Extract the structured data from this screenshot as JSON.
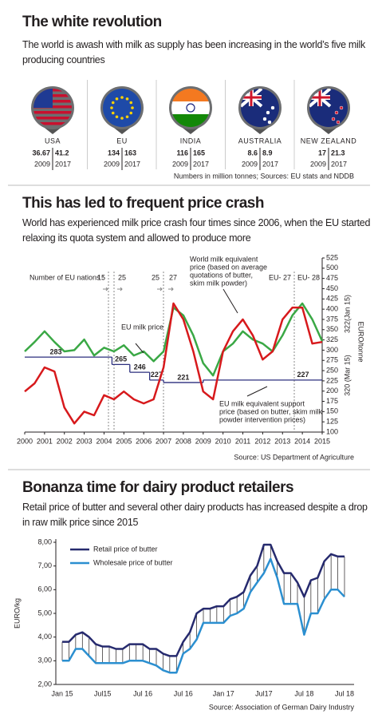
{
  "section1": {
    "title": "The white revolution",
    "subtitle": "The world is awash with milk as supply has been increasing in the world’s five milk producing countries",
    "countries": [
      {
        "name": "USA",
        "v2009": 36.67,
        "v2017": 41.2
      },
      {
        "name": "EU",
        "v2009": 134,
        "v2017": 163
      },
      {
        "name": "INDIA",
        "v2009": 116,
        "v2017": 165
      },
      {
        "name": "AUSTRALIA",
        "v2009": 8.6,
        "v2017": 8.9
      },
      {
        "name": "NEW ZEALAND",
        "v2009": 17,
        "v2017": 21.3
      }
    ],
    "year_a": "2009",
    "year_b": "2017",
    "note": "Numbers in million tonnes; Sources: EU stats and NDDB"
  },
  "section2": {
    "title": "This has led to frequent price crash",
    "subtitle": "World has experienced milk price crash four times since 2006, when the EU started relaxing its quota system and allowed to produce more",
    "source": "Source: US Department of Agriculture"
  },
  "section3": {
    "title": "Bonanza time for dairy product retailers",
    "subtitle": "Retail price of butter and several other dairy products has increased despite a drop in raw milk price since 2015",
    "source": "Source: Association of German Dairy Industry"
  },
  "chart_data": [
    {
      "type": "line",
      "y_label": "EURO/tonne",
      "x": [
        2000,
        2000.5,
        2001,
        2001.5,
        2002,
        2002.5,
        2003,
        2003.5,
        2004,
        2004.5,
        2005,
        2005.5,
        2006,
        2006.5,
        2007,
        2007.5,
        2008,
        2008.5,
        2009,
        2009.5,
        2010,
        2010.5,
        2011,
        2011.5,
        2012,
        2012.5,
        2013,
        2013.5,
        2014,
        2014.5,
        2015
      ],
      "xlim": [
        2000,
        2015
      ],
      "xticks": [
        2000,
        2001,
        2002,
        2003,
        2004,
        2005,
        2006,
        2007,
        2008,
        2009,
        2010,
        2011,
        2012,
        2013,
        2014,
        2015
      ],
      "ylim": [
        100,
        525
      ],
      "yticks": [
        100,
        125,
        150,
        175,
        200,
        225,
        250,
        275,
        300,
        325,
        350,
        375,
        400,
        425,
        450,
        475,
        500,
        525
      ],
      "series": [
        {
          "name": "EU milk price",
          "color": "#3aa845",
          "end_label": "322(Jan 15)",
          "values": [
            297,
            320,
            346,
            320,
            297,
            300,
            326,
            287,
            306,
            297,
            312,
            287,
            297,
            273,
            297,
            404,
            385,
            336,
            268,
            238,
            297,
            316,
            346,
            326,
            316,
            297,
            336,
            385,
            414,
            375,
            322
          ]
        },
        {
          "name": [
            "World milk equivalent",
            "price (based on average",
            "quotations of butter,",
            "skim milk powder)"
          ],
          "color": "#d7191c",
          "end_label": "320 (Mar 15)",
          "values": [
            199,
            219,
            258,
            248,
            160,
            121,
            150,
            141,
            190,
            180,
            199,
            180,
            170,
            180,
            258,
            414,
            375,
            297,
            199,
            180,
            297,
            346,
            375,
            336,
            277,
            297,
            375,
            404,
            404,
            316,
            320
          ]
        }
      ],
      "support": {
        "name": [
          "EU milk equivalent support",
          "price (based on butter, skim milk",
          "powder intervention prices)"
        ],
        "color": "#2b2f7e",
        "x": [
          2000,
          2004.4,
          2005.3,
          2006.3,
          2007,
          2009
        ],
        "values": [
          283,
          265,
          246,
          227,
          221,
          227
        ]
      },
      "eu_nations": [
        "Number of EU nations :",
        "15",
        "25",
        "25",
        "27",
        "EU- 27",
        "EU- 28"
      ]
    },
    {
      "type": "line",
      "y_label": "EURO/kg",
      "categories": [
        "Jan 15",
        null,
        null,
        null,
        null,
        null,
        "Jul15",
        null,
        null,
        null,
        null,
        null,
        "Jul 16",
        null,
        null,
        null,
        null,
        null,
        "Jul 16",
        null,
        null,
        null,
        null,
        null,
        "Jan 17",
        null,
        null,
        null,
        null,
        null,
        "Jul17",
        null,
        null,
        null,
        null,
        null,
        "Jul 18",
        null,
        null,
        null,
        null,
        null,
        "Jul 18"
      ],
      "ylim": [
        2,
        8
      ],
      "yticks": [
        {
          "value": 2,
          "label": "2,00"
        },
        {
          "value": 3,
          "label": "3,00"
        },
        {
          "value": 4,
          "label": "4,00"
        },
        {
          "value": 5,
          "label": "5,00"
        },
        {
          "value": 6,
          "label": "6,00"
        },
        {
          "value": 7,
          "label": "7,00"
        },
        {
          "value": 8,
          "label": "8,00"
        }
      ],
      "series": [
        {
          "name": "Retail price of butter",
          "color": "#262a6e",
          "values": [
            3.8,
            3.8,
            4.1,
            4.2,
            4.0,
            3.7,
            3.6,
            3.6,
            3.5,
            3.5,
            3.7,
            3.7,
            3.7,
            3.5,
            3.5,
            3.3,
            3.2,
            3.2,
            3.8,
            4.2,
            5.0,
            5.2,
            5.2,
            5.3,
            5.3,
            5.6,
            5.7,
            5.9,
            6.6,
            7.0,
            7.9,
            7.9,
            7.2,
            6.7,
            6.7,
            6.3,
            5.7,
            6.4,
            6.5,
            7.2,
            7.5,
            7.4,
            7.4
          ]
        },
        {
          "name": "Wholesale price of butter",
          "color": "#2b8fd0",
          "values": [
            3.0,
            3.0,
            3.5,
            3.5,
            3.2,
            2.9,
            2.9,
            2.9,
            2.9,
            2.9,
            3.0,
            3.0,
            3.0,
            2.9,
            2.8,
            2.6,
            2.5,
            2.5,
            3.3,
            3.5,
            3.9,
            4.6,
            4.6,
            4.6,
            4.6,
            4.9,
            5.0,
            5.2,
            5.9,
            6.3,
            6.7,
            7.3,
            6.5,
            5.4,
            5.4,
            5.4,
            4.1,
            5.0,
            5.0,
            5.6,
            6.0,
            6.0,
            5.7
          ]
        }
      ]
    }
  ]
}
